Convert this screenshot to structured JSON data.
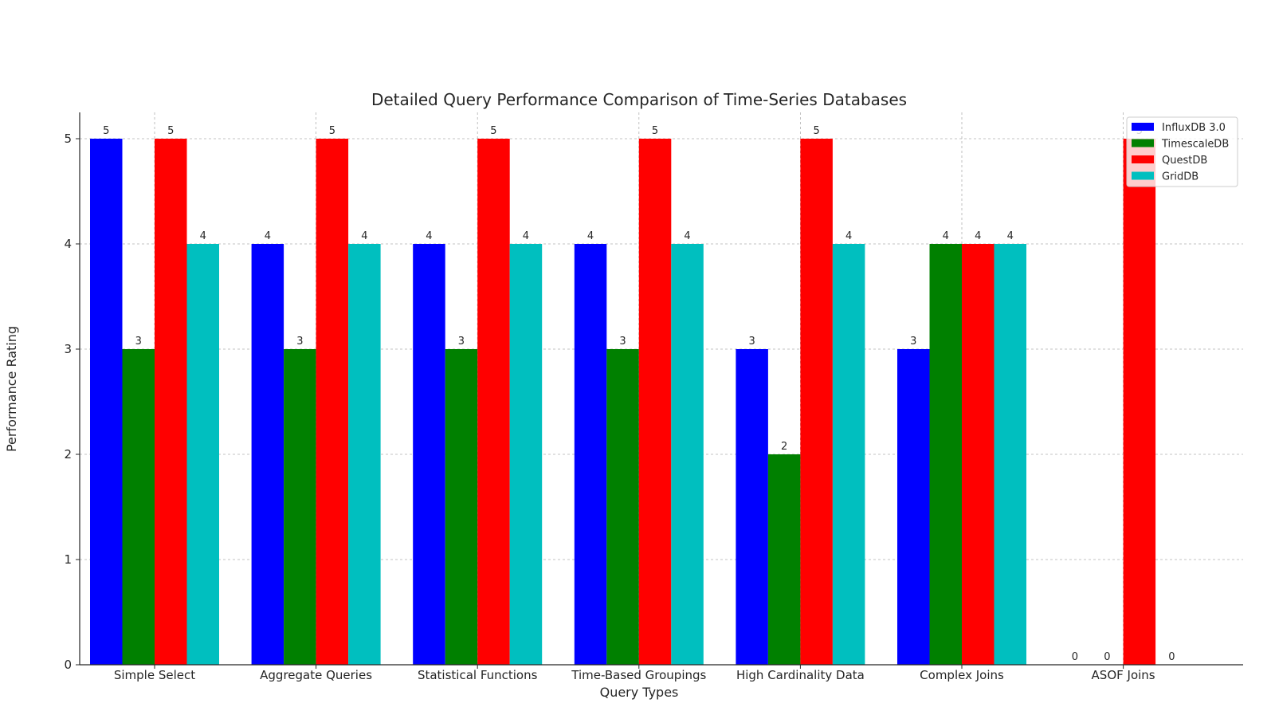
{
  "chart_data": {
    "type": "bar",
    "title": "Detailed Query Performance Comparison of Time-Series Databases",
    "xlabel": "Query Types",
    "ylabel": "Performance Rating",
    "categories": [
      "Simple Select",
      "Aggregate Queries",
      "Statistical Functions",
      "Time-Based Groupings",
      "High Cardinality Data",
      "Complex Joins",
      "ASOF Joins"
    ],
    "series": [
      {
        "name": "InfluxDB 3.0",
        "color": "#0000ff",
        "values": [
          5,
          4,
          4,
          4,
          3,
          3,
          0
        ]
      },
      {
        "name": "TimescaleDB",
        "color": "#008000",
        "values": [
          3,
          3,
          3,
          3,
          2,
          4,
          0
        ]
      },
      {
        "name": "QuestDB",
        "color": "#ff0000",
        "values": [
          5,
          5,
          5,
          5,
          5,
          4,
          5
        ]
      },
      {
        "name": "GridDB",
        "color": "#00bfbf",
        "values": [
          4,
          4,
          4,
          4,
          4,
          4,
          0
        ]
      }
    ],
    "ylim": [
      0,
      5.25
    ],
    "yticks": [
      "0",
      "1",
      "2",
      "3",
      "4",
      "5"
    ],
    "grid": true,
    "legend": "top-right",
    "data_labels": true
  }
}
